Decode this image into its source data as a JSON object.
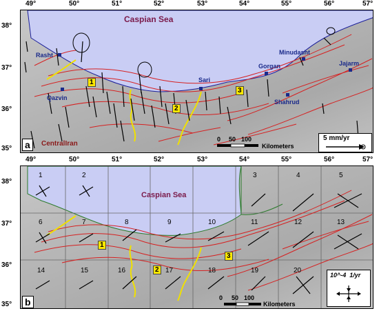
{
  "axes": {
    "lon_labels": [
      "49°",
      "50°",
      "51°",
      "52°",
      "53°",
      "54°",
      "55°",
      "56°",
      "57°"
    ],
    "lat_labels_a": [
      "38°",
      "37°",
      "36°",
      "35°"
    ],
    "lat_labels_b": [
      "38°",
      "37°",
      "36°",
      "35°"
    ]
  },
  "panel_a": {
    "letter": "a",
    "sea_name": "Caspian Sea",
    "region_name": "CentralIran",
    "cities": [
      "Rasht",
      "Qazvin",
      "Sari",
      "Gorgan",
      "Minudasht",
      "Jajarm",
      "Shahrud"
    ],
    "zones": [
      "1",
      "2",
      "3"
    ],
    "scale_ticks": [
      "0",
      "50",
      "100"
    ],
    "scale_unit": "Kilometers",
    "vector_legend": "5 mm/yr",
    "colors": {
      "sea": "#c9cdf4",
      "fault": "#d62020",
      "zone_boundary": "#f0e000",
      "vector": "#000000",
      "city": "#1a2a8a"
    }
  },
  "panel_b": {
    "letter": "b",
    "sea_name": "Caspian Sea",
    "cells": [
      "1",
      "2",
      "3",
      "4",
      "5",
      "6",
      "7",
      "8",
      "9",
      "10",
      "11",
      "12",
      "13",
      "14",
      "15",
      "16",
      "17",
      "18",
      "19",
      "20"
    ],
    "zones": [
      "1",
      "2",
      "3"
    ],
    "scale_ticks": [
      "0",
      "50",
      "100"
    ],
    "scale_unit": "Kilometers",
    "strain_legend": "10^-4  1/yr",
    "colors": {
      "sea": "#c9cdf4",
      "fault": "#d62020",
      "coast": "#2a7a2a",
      "zone_boundary": "#f0e000",
      "grid": "#666666"
    }
  }
}
